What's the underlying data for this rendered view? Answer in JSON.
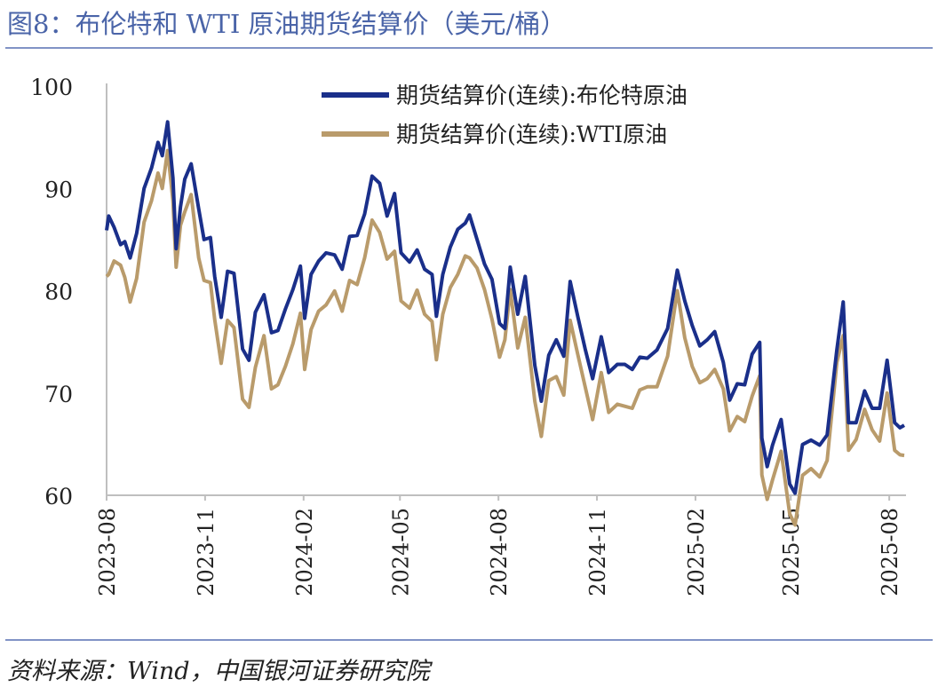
{
  "figure": {
    "title": "图8：布伦特和 WTI 原油期货结算价（美元/桶）",
    "source": "资料来源：Wind，中国银河证券研究院"
  },
  "chart_data": {
    "type": "line",
    "xlabel": "",
    "ylabel": "",
    "ylim": [
      60,
      100
    ],
    "yticks": [
      60,
      70,
      80,
      90,
      100
    ],
    "xtick_labels": [
      "2023-08",
      "2023-11",
      "2024-02",
      "2024-05",
      "2024-08",
      "2024-11",
      "2025-02",
      "2025-05",
      "2025-08"
    ],
    "legend_position": "top-center",
    "grid": false,
    "series": [
      {
        "name": "期货结算价(连续):布伦特原油",
        "color": "#1a2f8a",
        "points": [
          [
            "2023-08-01",
            85.9
          ],
          [
            "2023-08-03",
            87.3
          ],
          [
            "2023-08-08",
            86.2
          ],
          [
            "2023-08-14",
            84.5
          ],
          [
            "2023-08-18",
            84.8
          ],
          [
            "2023-08-23",
            83.2
          ],
          [
            "2023-08-29",
            85.6
          ],
          [
            "2023-09-05",
            90.0
          ],
          [
            "2023-09-12",
            92.0
          ],
          [
            "2023-09-18",
            94.5
          ],
          [
            "2023-09-22",
            93.2
          ],
          [
            "2023-09-27",
            96.5
          ],
          [
            "2023-10-02",
            91.0
          ],
          [
            "2023-10-05",
            84.1
          ],
          [
            "2023-10-09",
            88.2
          ],
          [
            "2023-10-13",
            90.9
          ],
          [
            "2023-10-19",
            92.4
          ],
          [
            "2023-10-26",
            88.0
          ],
          [
            "2023-10-31",
            85.0
          ],
          [
            "2023-11-06",
            85.2
          ],
          [
            "2023-11-10",
            81.4
          ],
          [
            "2023-11-16",
            77.4
          ],
          [
            "2023-11-22",
            81.9
          ],
          [
            "2023-11-28",
            81.7
          ],
          [
            "2023-12-06",
            74.3
          ],
          [
            "2023-12-12",
            73.2
          ],
          [
            "2023-12-18",
            77.9
          ],
          [
            "2023-12-26",
            79.6
          ],
          [
            "2024-01-02",
            75.9
          ],
          [
            "2024-01-08",
            76.1
          ],
          [
            "2024-01-15",
            78.2
          ],
          [
            "2024-01-22",
            80.1
          ],
          [
            "2024-01-29",
            82.4
          ],
          [
            "2024-02-02",
            77.3
          ],
          [
            "2024-02-08",
            81.6
          ],
          [
            "2024-02-15",
            82.9
          ],
          [
            "2024-02-22",
            83.7
          ],
          [
            "2024-03-01",
            83.5
          ],
          [
            "2024-03-08",
            82.1
          ],
          [
            "2024-03-15",
            85.3
          ],
          [
            "2024-03-22",
            85.4
          ],
          [
            "2024-03-29",
            87.5
          ],
          [
            "2024-04-05",
            91.2
          ],
          [
            "2024-04-12",
            90.5
          ],
          [
            "2024-04-19",
            87.3
          ],
          [
            "2024-04-26",
            89.5
          ],
          [
            "2024-05-02",
            83.7
          ],
          [
            "2024-05-10",
            82.8
          ],
          [
            "2024-05-17",
            83.98
          ],
          [
            "2024-05-24",
            82.1
          ],
          [
            "2024-05-31",
            81.6
          ],
          [
            "2024-06-04",
            77.5
          ],
          [
            "2024-06-10",
            81.6
          ],
          [
            "2024-06-17",
            84.25
          ],
          [
            "2024-06-24",
            86.0
          ],
          [
            "2024-07-01",
            86.6
          ],
          [
            "2024-07-05",
            87.4
          ],
          [
            "2024-07-12",
            85.0
          ],
          [
            "2024-07-19",
            82.6
          ],
          [
            "2024-07-26",
            81.1
          ],
          [
            "2024-08-02",
            76.8
          ],
          [
            "2024-08-07",
            76.3
          ],
          [
            "2024-08-12",
            82.3
          ],
          [
            "2024-08-19",
            77.7
          ],
          [
            "2024-08-26",
            81.4
          ],
          [
            "2024-09-04",
            72.7
          ],
          [
            "2024-09-10",
            69.2
          ],
          [
            "2024-09-17",
            73.7
          ],
          [
            "2024-09-24",
            75.2
          ],
          [
            "2024-10-01",
            73.6
          ],
          [
            "2024-10-07",
            80.9
          ],
          [
            "2024-10-14",
            77.5
          ],
          [
            "2024-10-21",
            74.3
          ],
          [
            "2024-10-28",
            71.4
          ],
          [
            "2024-11-05",
            75.5
          ],
          [
            "2024-11-12",
            72.0
          ],
          [
            "2024-11-20",
            72.8
          ],
          [
            "2024-11-27",
            72.8
          ],
          [
            "2024-12-04",
            72.3
          ],
          [
            "2024-12-11",
            73.5
          ],
          [
            "2024-12-18",
            73.4
          ],
          [
            "2024-12-27",
            74.2
          ],
          [
            "2025-01-06",
            76.3
          ],
          [
            "2025-01-15",
            82.0
          ],
          [
            "2025-01-22",
            79.0
          ],
          [
            "2025-01-29",
            76.6
          ],
          [
            "2025-02-05",
            74.6
          ],
          [
            "2025-02-12",
            75.2
          ],
          [
            "2025-02-19",
            76.0
          ],
          [
            "2025-02-27",
            73.0
          ],
          [
            "2025-03-05",
            69.3
          ],
          [
            "2025-03-12",
            70.9
          ],
          [
            "2025-03-19",
            70.8
          ],
          [
            "2025-03-26",
            73.8
          ],
          [
            "2025-04-02",
            74.95
          ],
          [
            "2025-04-04",
            65.6
          ],
          [
            "2025-04-09",
            62.8
          ],
          [
            "2025-04-14",
            64.9
          ],
          [
            "2025-04-22",
            67.4
          ],
          [
            "2025-04-30",
            61.1
          ],
          [
            "2025-05-05",
            60.2
          ],
          [
            "2025-05-12",
            64.96
          ],
          [
            "2025-05-20",
            65.4
          ],
          [
            "2025-05-28",
            64.9
          ],
          [
            "2025-06-04",
            65.9
          ],
          [
            "2025-06-13",
            74.2
          ],
          [
            "2025-06-19",
            78.9
          ],
          [
            "2025-06-24",
            67.1
          ],
          [
            "2025-07-01",
            67.1
          ],
          [
            "2025-07-09",
            70.2
          ],
          [
            "2025-07-16",
            68.5
          ],
          [
            "2025-07-23",
            68.5
          ],
          [
            "2025-07-30",
            73.2
          ],
          [
            "2025-08-06",
            67.1
          ],
          [
            "2025-08-11",
            66.6
          ],
          [
            "2025-08-15",
            66.85
          ]
        ]
      },
      {
        "name": "期货结算价(连续):WTI原油",
        "color": "#b99b6b",
        "points": [
          [
            "2023-08-01",
            81.4
          ],
          [
            "2023-08-03",
            81.6
          ],
          [
            "2023-08-08",
            82.9
          ],
          [
            "2023-08-14",
            82.5
          ],
          [
            "2023-08-18",
            81.3
          ],
          [
            "2023-08-23",
            78.9
          ],
          [
            "2023-08-29",
            81.2
          ],
          [
            "2023-09-05",
            86.7
          ],
          [
            "2023-09-12",
            88.8
          ],
          [
            "2023-09-18",
            91.5
          ],
          [
            "2023-09-22",
            90.0
          ],
          [
            "2023-09-27",
            93.7
          ],
          [
            "2023-10-02",
            88.8
          ],
          [
            "2023-10-05",
            82.3
          ],
          [
            "2023-10-09",
            86.4
          ],
          [
            "2023-10-13",
            87.7
          ],
          [
            "2023-10-19",
            89.4
          ],
          [
            "2023-10-26",
            83.2
          ],
          [
            "2023-10-31",
            81.0
          ],
          [
            "2023-11-06",
            80.8
          ],
          [
            "2023-11-10",
            77.2
          ],
          [
            "2023-11-16",
            72.9
          ],
          [
            "2023-11-22",
            77.1
          ],
          [
            "2023-11-28",
            76.4
          ],
          [
            "2023-12-06",
            69.4
          ],
          [
            "2023-12-12",
            68.6
          ],
          [
            "2023-12-18",
            72.5
          ],
          [
            "2023-12-26",
            75.6
          ],
          [
            "2024-01-02",
            70.4
          ],
          [
            "2024-01-08",
            70.8
          ],
          [
            "2024-01-15",
            72.6
          ],
          [
            "2024-01-22",
            74.8
          ],
          [
            "2024-01-29",
            77.8
          ],
          [
            "2024-02-02",
            72.3
          ],
          [
            "2024-02-08",
            76.2
          ],
          [
            "2024-02-15",
            78.0
          ],
          [
            "2024-02-22",
            78.6
          ],
          [
            "2024-03-01",
            79.97
          ],
          [
            "2024-03-08",
            78.0
          ],
          [
            "2024-03-15",
            81.0
          ],
          [
            "2024-03-22",
            80.6
          ],
          [
            "2024-03-29",
            83.2
          ],
          [
            "2024-04-05",
            86.9
          ],
          [
            "2024-04-12",
            85.7
          ],
          [
            "2024-04-19",
            83.1
          ],
          [
            "2024-04-26",
            83.85
          ],
          [
            "2024-05-02",
            79.0
          ],
          [
            "2024-05-10",
            78.3
          ],
          [
            "2024-05-17",
            80.06
          ],
          [
            "2024-05-24",
            77.7
          ],
          [
            "2024-05-31",
            76.99
          ],
          [
            "2024-06-04",
            73.25
          ],
          [
            "2024-06-10",
            77.7
          ],
          [
            "2024-06-17",
            80.3
          ],
          [
            "2024-06-24",
            81.6
          ],
          [
            "2024-07-01",
            83.4
          ],
          [
            "2024-07-05",
            83.2
          ],
          [
            "2024-07-12",
            82.2
          ],
          [
            "2024-07-19",
            80.1
          ],
          [
            "2024-07-26",
            77.2
          ],
          [
            "2024-08-02",
            73.5
          ],
          [
            "2024-08-07",
            75.2
          ],
          [
            "2024-08-12",
            80.1
          ],
          [
            "2024-08-19",
            74.4
          ],
          [
            "2024-08-26",
            77.4
          ],
          [
            "2024-09-04",
            69.2
          ],
          [
            "2024-09-10",
            65.75
          ],
          [
            "2024-09-17",
            71.2
          ],
          [
            "2024-09-24",
            71.6
          ],
          [
            "2024-10-01",
            69.8
          ],
          [
            "2024-10-07",
            77.1
          ],
          [
            "2024-10-14",
            73.8
          ],
          [
            "2024-10-21",
            70.6
          ],
          [
            "2024-10-28",
            67.4
          ],
          [
            "2024-11-05",
            71.99
          ],
          [
            "2024-11-12",
            68.1
          ],
          [
            "2024-11-20",
            68.9
          ],
          [
            "2024-11-27",
            68.7
          ],
          [
            "2024-12-04",
            68.5
          ],
          [
            "2024-12-11",
            70.3
          ],
          [
            "2024-12-18",
            70.6
          ],
          [
            "2024-12-27",
            70.6
          ],
          [
            "2025-01-06",
            73.6
          ],
          [
            "2025-01-15",
            80.0
          ],
          [
            "2025-01-22",
            75.4
          ],
          [
            "2025-01-29",
            72.6
          ],
          [
            "2025-02-05",
            71.0
          ],
          [
            "2025-02-12",
            71.4
          ],
          [
            "2025-02-19",
            72.3
          ],
          [
            "2025-02-27",
            70.4
          ],
          [
            "2025-03-05",
            66.3
          ],
          [
            "2025-03-12",
            67.7
          ],
          [
            "2025-03-19",
            67.2
          ],
          [
            "2025-03-26",
            69.7
          ],
          [
            "2025-04-02",
            71.7
          ],
          [
            "2025-04-04",
            62.0
          ],
          [
            "2025-04-09",
            59.6
          ],
          [
            "2025-04-14",
            61.5
          ],
          [
            "2025-04-22",
            64.3
          ],
          [
            "2025-04-30",
            58.2
          ],
          [
            "2025-05-05",
            57.1
          ],
          [
            "2025-05-12",
            61.95
          ],
          [
            "2025-05-20",
            62.6
          ],
          [
            "2025-05-28",
            61.8
          ],
          [
            "2025-06-04",
            63.4
          ],
          [
            "2025-06-13",
            72.98
          ],
          [
            "2025-06-19",
            75.6
          ],
          [
            "2025-06-24",
            64.4
          ],
          [
            "2025-07-01",
            65.45
          ],
          [
            "2025-07-09",
            68.4
          ],
          [
            "2025-07-16",
            66.4
          ],
          [
            "2025-07-23",
            65.3
          ],
          [
            "2025-07-30",
            70.0
          ],
          [
            "2025-08-06",
            64.4
          ],
          [
            "2025-08-11",
            63.96
          ],
          [
            "2025-08-15",
            63.9
          ]
        ]
      }
    ]
  }
}
